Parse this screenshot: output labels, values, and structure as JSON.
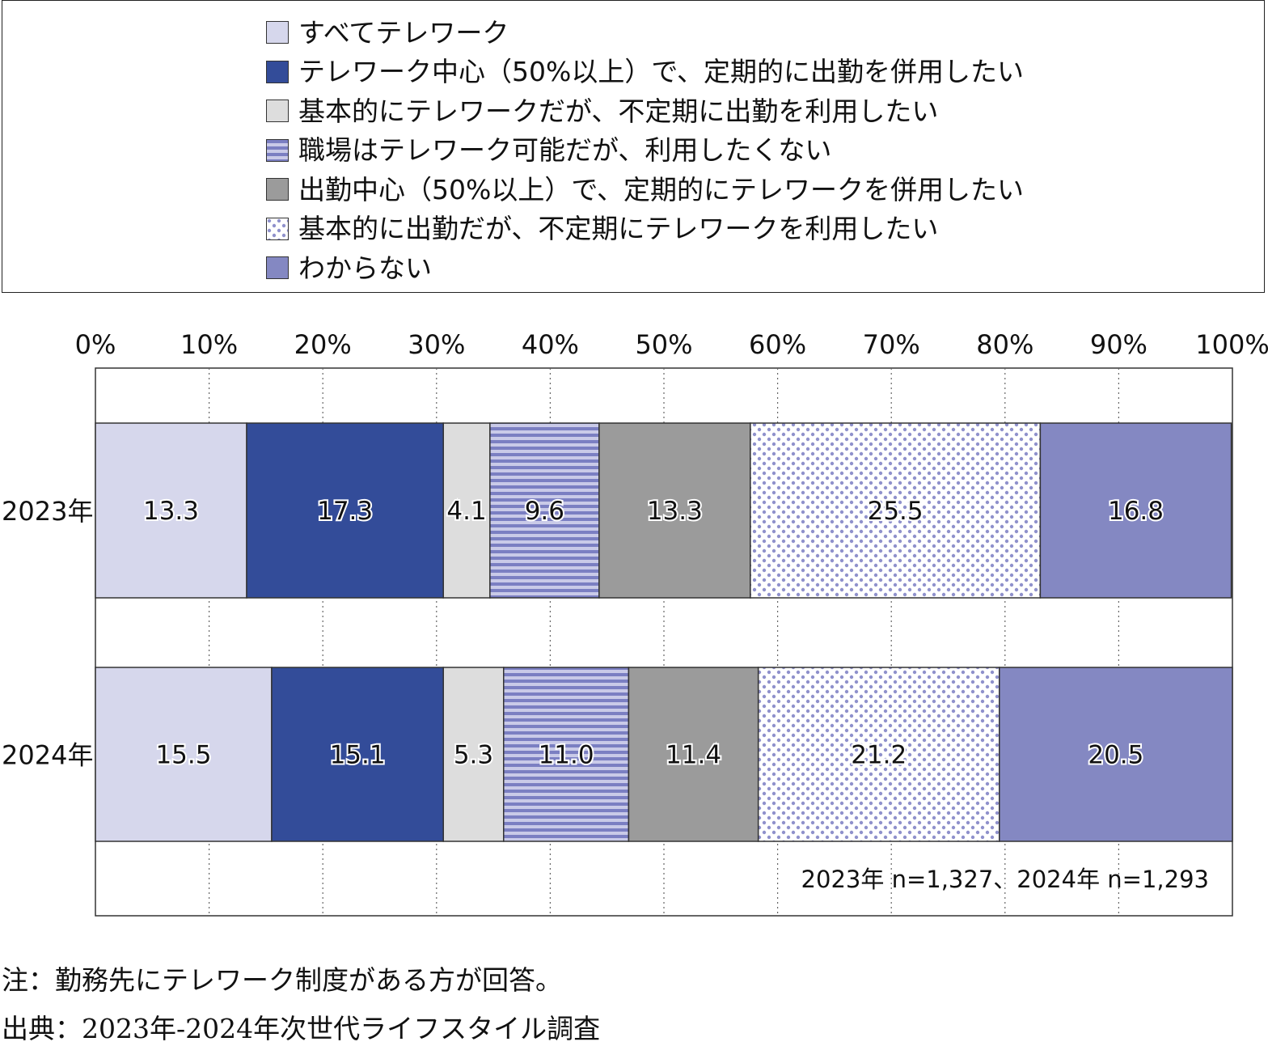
{
  "chart_data": {
    "type": "bar",
    "orientation": "horizontal",
    "stacked": true,
    "categories": [
      "2023年",
      "2024年"
    ],
    "series": [
      {
        "name": "すべてテレワーク",
        "values": [
          13.3,
          15.5
        ],
        "color": "#d6d7ec",
        "pattern": "solid"
      },
      {
        "name": "テレワーク中心（50%以上）で、定期的に出勤を併用したい",
        "values": [
          17.3,
          15.1
        ],
        "color": "#334c99",
        "pattern": "solid"
      },
      {
        "name": "基本的にテレワークだが、不定期に出勤を利用したい",
        "values": [
          4.1,
          5.3
        ],
        "color": "#dddddd",
        "pattern": "solid"
      },
      {
        "name": "職場はテレワーク可能だが、利用したくない",
        "values": [
          9.6,
          11.0
        ],
        "color": "#7b7fc2",
        "pattern": "horizontal-stripes"
      },
      {
        "name": "出勤中心（50%以上）で、定期的にテレワークを併用したい",
        "values": [
          13.3,
          11.4
        ],
        "color": "#9b9b9b",
        "pattern": "solid"
      },
      {
        "name": "基本的に出勤だが、不定期にテレワークを利用したい",
        "values": [
          25.5,
          21.2
        ],
        "color": "#8f91cc",
        "pattern": "dots"
      },
      {
        "name": "わからない",
        "values": [
          16.8,
          20.5
        ],
        "color": "#8488c2",
        "pattern": "solid"
      }
    ],
    "xlim": [
      0,
      100
    ],
    "x_tick_labels": [
      "0%",
      "10%",
      "20%",
      "30%",
      "40%",
      "50%",
      "60%",
      "70%",
      "80%",
      "90%",
      "100%"
    ],
    "grid": "vertical dotted",
    "legend_position": "top",
    "annotation": "2023年 n=1,327、2024年 n=1,293"
  },
  "footnotes": {
    "note": "注：勤務先にテレワーク制度がある方が回答。",
    "source": "出典：2023年-2024年次世代ライフスタイル調査"
  }
}
